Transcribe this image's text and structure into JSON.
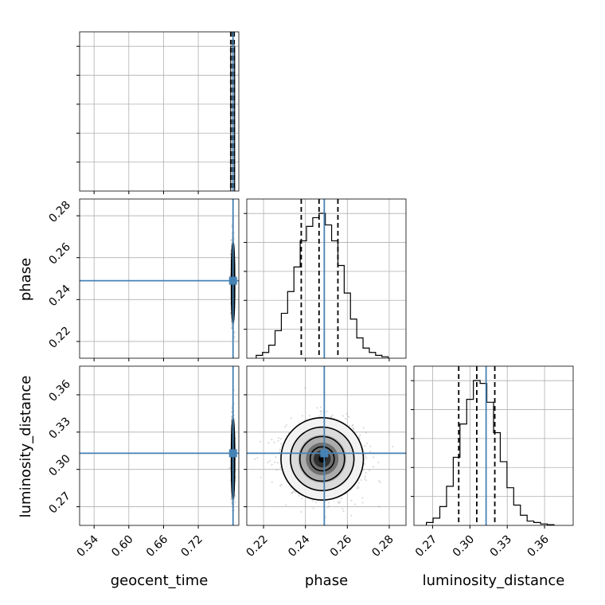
{
  "chart_data": {
    "type": "corner",
    "parameters": [
      "geocent_time",
      "phase",
      "luminosity_distance"
    ],
    "truths": {
      "geocent_time": 0.78,
      "phase": 0.249,
      "luminosity_distance": 0.313
    },
    "colors": {
      "truth": "#4682b4",
      "hist": "#000000",
      "grid": "#b0b0b0",
      "scatter": "#9a9a9a"
    },
    "grid": true,
    "ticks": {
      "geocent_time": [
        "0.54",
        "0.60",
        "0.66",
        "0.72"
      ],
      "phase": [
        "0.22",
        "0.24",
        "0.26",
        "0.28"
      ],
      "luminosity_distance": [
        "0.27",
        "0.30",
        "0.33",
        "0.36"
      ]
    },
    "ranges": {
      "geocent_time": [
        0.515,
        0.79
      ],
      "phase": [
        0.212,
        0.288
      ],
      "luminosity_distance": [
        0.255,
        0.383
      ]
    },
    "quantile_lines": {
      "geocent_time": [
        0.776,
        0.779,
        0.782
      ],
      "phase": [
        0.238,
        0.2465,
        0.2555
      ],
      "luminosity_distance": [
        0.291,
        0.3055,
        0.32
      ]
    },
    "histograms": {
      "geocent_time": {
        "edges": [
          0.776,
          0.7828
        ],
        "counts": [
          1.0
        ]
      },
      "phase": {
        "edges": [
          0.2165,
          0.2195,
          0.2225,
          0.2255,
          0.2285,
          0.2315,
          0.2345,
          0.2375,
          0.2405,
          0.2435,
          0.2465,
          0.2495,
          0.2525,
          0.2555,
          0.2585,
          0.2615,
          0.2645,
          0.2675,
          0.2705,
          0.2735,
          0.2765,
          0.2795
        ],
        "counts": [
          0.02,
          0.04,
          0.09,
          0.19,
          0.31,
          0.46,
          0.63,
          0.81,
          0.91,
          0.97,
          1.0,
          0.92,
          0.81,
          0.64,
          0.45,
          0.27,
          0.14,
          0.07,
          0.04,
          0.02,
          0.01
        ]
      },
      "luminosity_distance": {
        "edges": [
          0.265,
          0.2704,
          0.2758,
          0.2812,
          0.2866,
          0.292,
          0.2974,
          0.3028,
          0.3082,
          0.3136,
          0.319,
          0.3244,
          0.3298,
          0.3352,
          0.3406,
          0.346,
          0.3514,
          0.3568,
          0.3622,
          0.3676
        ],
        "counts": [
          0.02,
          0.05,
          0.13,
          0.27,
          0.47,
          0.7,
          0.87,
          1.0,
          0.98,
          0.85,
          0.64,
          0.44,
          0.26,
          0.14,
          0.07,
          0.03,
          0.02,
          0.01,
          0.005
        ]
      }
    },
    "joint_center": {
      "phase": 0.248,
      "luminosity_distance": 0.3085
    },
    "joint_spread": {
      "geocent_time": 0.0012,
      "phase": 0.0082,
      "luminosity_distance": 0.0138
    }
  }
}
